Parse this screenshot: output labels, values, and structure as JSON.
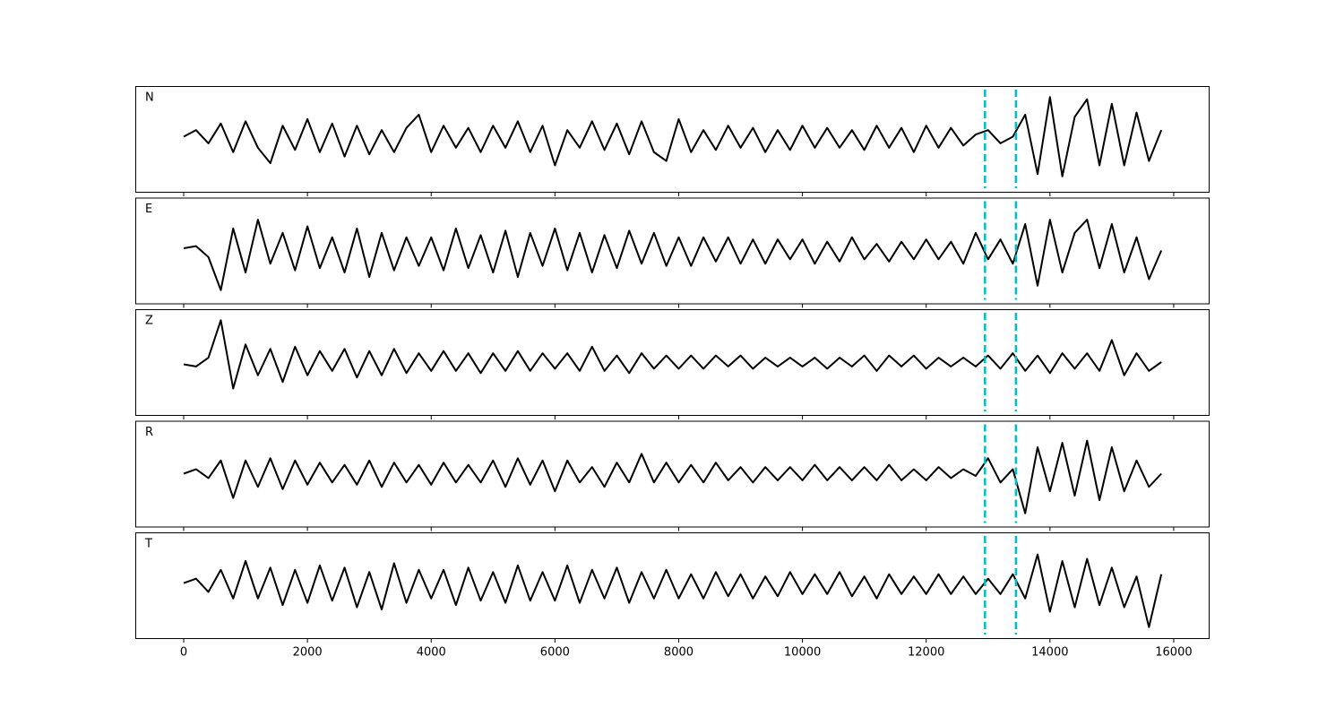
{
  "chart_data": {
    "type": "line",
    "x": [
      0,
      200,
      400,
      600,
      800,
      1000,
      1200,
      1400,
      1600,
      1800,
      2000,
      2200,
      2400,
      2600,
      2800,
      3000,
      3200,
      3400,
      3600,
      3800,
      4000,
      4200,
      4400,
      4600,
      4800,
      5000,
      5200,
      5400,
      5600,
      5800,
      6000,
      6200,
      6400,
      6600,
      6800,
      7000,
      7200,
      7400,
      7600,
      7800,
      8000,
      8200,
      8400,
      8600,
      8800,
      9000,
      9200,
      9400,
      9600,
      9800,
      10000,
      10200,
      10400,
      10600,
      10800,
      11000,
      11200,
      11400,
      11600,
      11800,
      12000,
      12200,
      12400,
      12600,
      12800,
      13000,
      13200,
      13400,
      13600,
      13800,
      14000,
      14200,
      14400,
      14600,
      14800,
      15000,
      15200,
      15400,
      15600,
      15800
    ],
    "series": [
      {
        "name": "N",
        "color": "#000000",
        "values": [
          0.05,
          0.2,
          -0.1,
          0.35,
          -0.3,
          0.4,
          -0.2,
          -0.55,
          0.3,
          -0.25,
          0.45,
          -0.3,
          0.35,
          -0.4,
          0.3,
          -0.35,
          0.2,
          -0.3,
          0.25,
          0.55,
          -0.3,
          0.3,
          -0.2,
          0.25,
          -0.3,
          0.3,
          -0.2,
          0.4,
          -0.3,
          0.3,
          -0.6,
          0.2,
          -0.2,
          0.4,
          -0.25,
          0.35,
          -0.35,
          0.4,
          -0.3,
          -0.5,
          0.45,
          -0.3,
          0.2,
          -0.25,
          0.3,
          -0.2,
          0.25,
          -0.3,
          0.2,
          -0.25,
          0.3,
          -0.2,
          0.25,
          -0.2,
          0.2,
          -0.25,
          0.3,
          -0.2,
          0.25,
          -0.3,
          0.3,
          -0.2,
          0.25,
          -0.15,
          0.1,
          0.2,
          -0.1,
          0.05,
          0.55,
          -0.8,
          0.95,
          -0.85,
          0.5,
          0.9,
          -0.6,
          0.8,
          -0.6,
          0.6,
          -0.5,
          0.2
        ]
      },
      {
        "name": "E",
        "color": "#000000",
        "values": [
          0.05,
          0.1,
          -0.15,
          -0.9,
          0.5,
          -0.5,
          0.7,
          -0.3,
          0.4,
          -0.45,
          0.55,
          -0.4,
          0.3,
          -0.5,
          0.5,
          -0.6,
          0.4,
          -0.45,
          0.3,
          -0.35,
          0.3,
          -0.45,
          0.5,
          -0.4,
          0.35,
          -0.5,
          0.45,
          -0.6,
          0.4,
          -0.35,
          0.5,
          -0.45,
          0.4,
          -0.5,
          0.35,
          -0.4,
          0.45,
          -0.3,
          0.4,
          -0.35,
          0.3,
          -0.35,
          0.3,
          -0.25,
          0.3,
          -0.3,
          0.25,
          -0.3,
          0.25,
          -0.2,
          0.25,
          -0.3,
          0.2,
          -0.25,
          0.3,
          -0.2,
          0.15,
          -0.25,
          0.2,
          -0.2,
          0.25,
          -0.2,
          0.2,
          -0.3,
          0.4,
          -0.2,
          0.25,
          -0.3,
          0.6,
          -0.8,
          0.7,
          -0.5,
          0.4,
          0.7,
          -0.4,
          0.6,
          -0.5,
          0.3,
          -0.65,
          0.0
        ]
      },
      {
        "name": "Z",
        "color": "#000000",
        "values": [
          -0.05,
          -0.1,
          0.1,
          0.95,
          -0.6,
          0.4,
          -0.3,
          0.3,
          -0.45,
          0.35,
          -0.3,
          0.25,
          -0.2,
          0.3,
          -0.35,
          0.25,
          -0.3,
          0.3,
          -0.25,
          0.2,
          -0.2,
          0.25,
          -0.2,
          0.2,
          -0.25,
          0.2,
          -0.2,
          0.25,
          -0.2,
          0.2,
          -0.15,
          0.2,
          -0.2,
          0.35,
          -0.2,
          0.15,
          -0.25,
          0.2,
          -0.15,
          0.15,
          -0.15,
          0.15,
          -0.15,
          0.15,
          -0.1,
          0.15,
          -0.15,
          0.1,
          -0.1,
          0.1,
          -0.1,
          0.1,
          -0.15,
          0.1,
          -0.1,
          0.15,
          -0.2,
          0.15,
          -0.1,
          0.15,
          -0.15,
          0.1,
          -0.1,
          0.1,
          -0.1,
          0.15,
          -0.15,
          0.2,
          -0.2,
          0.15,
          -0.25,
          0.2,
          -0.15,
          0.2,
          -0.2,
          0.5,
          -0.3,
          0.2,
          -0.2,
          0.0
        ]
      },
      {
        "name": "R",
        "color": "#000000",
        "values": [
          0.0,
          0.1,
          -0.1,
          0.3,
          -0.55,
          0.3,
          -0.3,
          0.35,
          -0.35,
          0.3,
          -0.25,
          0.25,
          -0.2,
          0.2,
          -0.25,
          0.3,
          -0.3,
          0.25,
          -0.2,
          0.2,
          -0.25,
          0.25,
          -0.2,
          0.2,
          -0.2,
          0.3,
          -0.3,
          0.35,
          -0.25,
          0.3,
          -0.4,
          0.3,
          -0.2,
          0.15,
          -0.3,
          0.25,
          -0.2,
          0.45,
          -0.2,
          0.25,
          -0.2,
          0.2,
          -0.2,
          0.25,
          -0.15,
          0.15,
          -0.2,
          0.15,
          -0.15,
          0.15,
          -0.15,
          0.2,
          -0.15,
          0.15,
          -0.15,
          0.15,
          -0.15,
          0.2,
          -0.15,
          0.1,
          -0.15,
          0.15,
          -0.1,
          0.1,
          -0.05,
          0.35,
          -0.2,
          0.1,
          -0.9,
          0.6,
          -0.4,
          0.7,
          -0.5,
          0.75,
          -0.6,
          0.6,
          -0.4,
          0.3,
          -0.3,
          0.0
        ]
      },
      {
        "name": "T",
        "color": "#000000",
        "values": [
          0.05,
          0.15,
          -0.15,
          0.35,
          -0.3,
          0.55,
          -0.3,
          0.4,
          -0.45,
          0.35,
          -0.4,
          0.45,
          -0.35,
          0.4,
          -0.5,
          0.3,
          -0.55,
          0.5,
          -0.4,
          0.35,
          -0.3,
          0.35,
          -0.45,
          0.4,
          -0.35,
          0.3,
          -0.4,
          0.45,
          -0.35,
          0.3,
          -0.35,
          0.45,
          -0.4,
          0.35,
          -0.3,
          0.4,
          -0.4,
          0.3,
          -0.3,
          0.35,
          -0.3,
          0.25,
          -0.3,
          0.3,
          -0.25,
          0.25,
          -0.3,
          0.2,
          -0.25,
          0.3,
          -0.2,
          0.25,
          -0.2,
          0.3,
          -0.25,
          0.2,
          -0.3,
          0.25,
          -0.2,
          0.2,
          -0.2,
          0.25,
          -0.2,
          0.2,
          -0.2,
          0.15,
          -0.2,
          0.25,
          -0.3,
          0.7,
          -0.6,
          0.55,
          -0.5,
          0.6,
          -0.45,
          0.4,
          -0.5,
          0.2,
          -0.95,
          0.25
        ]
      }
    ],
    "xlim": [
      -782,
      16580
    ],
    "xticks": [
      0,
      2000,
      4000,
      6000,
      8000,
      10000,
      12000,
      14000,
      16000
    ],
    "ylim": [
      -1.2,
      1.2
    ],
    "vlines": [
      12950,
      13450
    ],
    "vline_color": "#00bfbf"
  }
}
